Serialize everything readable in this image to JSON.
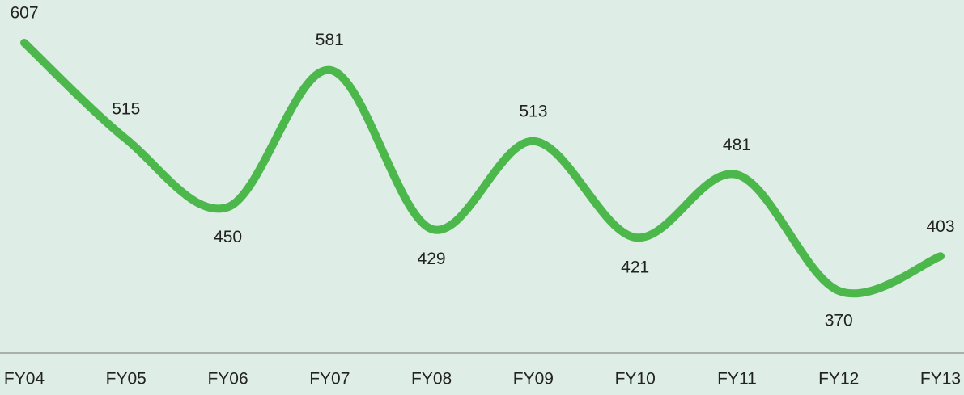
{
  "chart_data": {
    "type": "line",
    "categories": [
      "FY04",
      "FY05",
      "FY06",
      "FY07",
      "FY08",
      "FY09",
      "FY10",
      "FY11",
      "FY12",
      "FY13"
    ],
    "series": [
      {
        "color": "#4cb84c",
        "values": [
          607,
          515,
          450,
          581,
          429,
          513,
          421,
          481,
          370,
          403
        ]
      }
    ],
    "smooth": true,
    "data_labels": true
  }
}
